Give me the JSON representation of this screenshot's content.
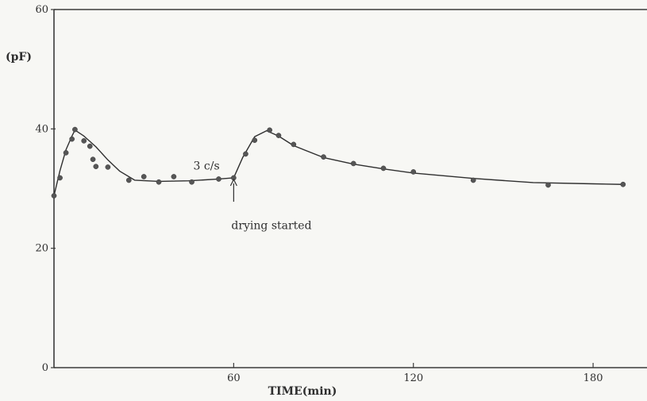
{
  "chart_data": {
    "type": "line",
    "title": "",
    "xlabel": "TIME(min)",
    "ylabel": "(pF)",
    "xlim": [
      0,
      198
    ],
    "ylim": [
      0,
      60
    ],
    "x_ticks": [
      60,
      120,
      180
    ],
    "x_tick_labels": [
      "60",
      "120",
      "180"
    ],
    "y_ticks": [
      0,
      20,
      40,
      60
    ],
    "y_tick_labels": [
      "0",
      "20",
      "40",
      "60"
    ],
    "grid": false,
    "annotations": [
      {
        "text": "3 c/s",
        "x": 46,
        "y": 33.2
      },
      {
        "text": "drying started",
        "x": 60,
        "y": 23.1
      }
    ],
    "series": [
      {
        "x": [
          0,
          2,
          4,
          6,
          7,
          10,
          12,
          13,
          14,
          18,
          25,
          30,
          35,
          40,
          46,
          55,
          60,
          64,
          67,
          72,
          75,
          80,
          90,
          100,
          110,
          120,
          140,
          165,
          190
        ],
        "y": [
          28.8,
          31.8,
          36.0,
          38.3,
          39.9,
          38.0,
          37.1,
          34.9,
          33.7,
          33.6,
          31.4,
          32.0,
          31.1,
          32.0,
          31.1,
          31.6,
          31.8,
          35.8,
          38.1,
          39.8,
          38.9,
          37.4,
          35.3,
          34.2,
          33.4,
          32.8,
          31.4,
          30.6,
          30.7
        ],
        "curve": [
          [
            0,
            28.8
          ],
          [
            2,
            33.0
          ],
          [
            4,
            36.5
          ],
          [
            6,
            38.8
          ],
          [
            7,
            39.8
          ],
          [
            10,
            38.8
          ],
          [
            14,
            37.0
          ],
          [
            18,
            34.8
          ],
          [
            22,
            32.9
          ],
          [
            27,
            31.4
          ],
          [
            35,
            31.2
          ],
          [
            45,
            31.3
          ],
          [
            55,
            31.6
          ],
          [
            60,
            31.8
          ],
          [
            63,
            35.2
          ],
          [
            67,
            38.7
          ],
          [
            71,
            39.7
          ],
          [
            75,
            38.8
          ],
          [
            80,
            37.2
          ],
          [
            90,
            35.2
          ],
          [
            100,
            34.1
          ],
          [
            110,
            33.3
          ],
          [
            120,
            32.6
          ],
          [
            140,
            31.7
          ],
          [
            160,
            31.0
          ],
          [
            180,
            30.8
          ],
          [
            190,
            30.7
          ]
        ]
      }
    ]
  }
}
